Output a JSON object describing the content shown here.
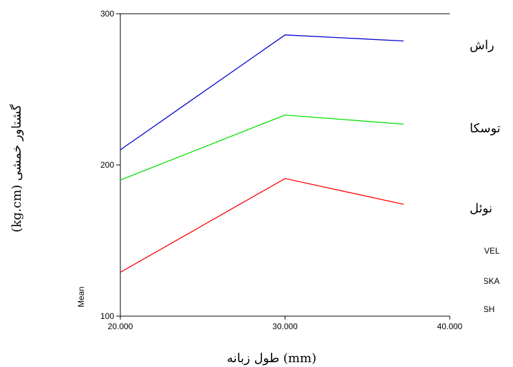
{
  "chart_data": {
    "type": "line",
    "xlabel": "طول زبانه (mm)",
    "ylabel": "(kg.cm) گشتاور خمشی",
    "ylabel_prefix": "Mean",
    "xlim": [
      20,
      40
    ],
    "ylim": [
      100,
      300
    ],
    "x_ticks": [
      "20.000",
      "30.000",
      "40.000"
    ],
    "y_ticks": [
      "100",
      "200",
      "300"
    ],
    "x": [
      20,
      30,
      37.2
    ],
    "series": [
      {
        "name": "راش",
        "legend": "RASH",
        "color": "#0000cc",
        "values": [
          210,
          286,
          282
        ]
      },
      {
        "name": "توسکا",
        "legend": "TOSKA",
        "color": "#00e000",
        "values": [
          190,
          233,
          227
        ]
      },
      {
        "name": "نوئل",
        "legend": "NOVEL",
        "color": "#ff0000",
        "values": [
          129,
          191,
          174
        ]
      }
    ],
    "legend_partial": [
      "NOVEL",
      "TOSKA",
      "RASH"
    ]
  }
}
